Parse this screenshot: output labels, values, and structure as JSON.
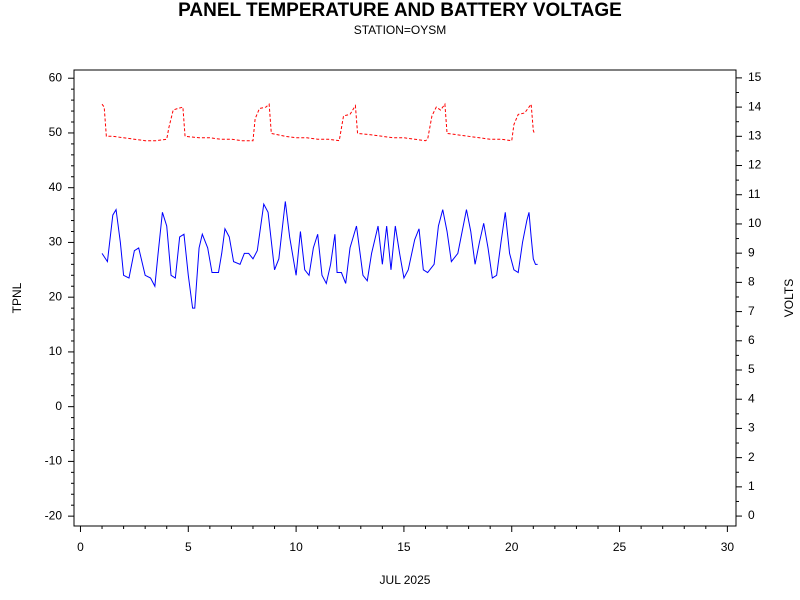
{
  "chart_data": {
    "type": "line",
    "title": "PANEL TEMPERATURE AND BATTERY VOLTAGE",
    "subtitle": "STATION=OYSM",
    "xlabel": "JUL 2025",
    "ylabel": "TPNL",
    "y2label": "VOLTS",
    "xlim": [
      -0.3,
      30.4
    ],
    "xticks": [
      0,
      5,
      10,
      15,
      20,
      25,
      30
    ],
    "ylim": [
      -21.8,
      61.5
    ],
    "yticks": [
      -20,
      -10,
      0,
      10,
      20,
      30,
      40,
      50,
      60
    ],
    "y2lim": [
      -0.34,
      15.27
    ],
    "y2ticks": [
      0,
      1,
      2,
      3,
      4,
      5,
      6,
      7,
      8,
      9,
      10,
      11,
      12,
      13,
      14,
      15
    ],
    "series": [
      {
        "name": "TPNL",
        "color": "#0000ff",
        "dash": false,
        "x": [
          1.0,
          1.25,
          1.5,
          1.65,
          1.85,
          2.0,
          2.25,
          2.5,
          2.7,
          3.0,
          3.25,
          3.45,
          3.6,
          3.8,
          4.0,
          4.2,
          4.4,
          4.6,
          4.8,
          5.0,
          5.2,
          5.3,
          5.5,
          5.65,
          5.9,
          6.1,
          6.4,
          6.55,
          6.7,
          6.9,
          7.1,
          7.4,
          7.6,
          7.8,
          8.0,
          8.2,
          8.5,
          8.7,
          9.0,
          9.2,
          9.5,
          9.7,
          10.0,
          10.2,
          10.4,
          10.6,
          10.8,
          11.0,
          11.2,
          11.4,
          11.6,
          11.8,
          11.9,
          12.1,
          12.3,
          12.5,
          12.8,
          13.0,
          13.1,
          13.3,
          13.5,
          13.8,
          14.0,
          14.2,
          14.4,
          14.6,
          14.8,
          15.0,
          15.2,
          15.5,
          15.7,
          15.9,
          16.1,
          16.4,
          16.6,
          16.8,
          17.0,
          17.2,
          17.5,
          17.7,
          17.9,
          18.1,
          18.3,
          18.5,
          18.7,
          18.9,
          19.1,
          19.3,
          19.5,
          19.7,
          19.9,
          20.1,
          20.3,
          20.5,
          20.7,
          20.8,
          20.9,
          21.0,
          21.1,
          21.2
        ],
        "values": [
          28,
          26.5,
          35,
          36,
          30,
          24,
          23.5,
          28.5,
          29,
          24,
          23.5,
          22,
          28,
          35.5,
          33,
          24,
          23.5,
          31,
          31.5,
          24,
          18,
          18,
          29,
          31.5,
          29,
          24.5,
          24.5,
          28,
          32.5,
          31,
          26.5,
          26,
          28,
          28,
          27,
          28.5,
          37,
          35.5,
          25,
          27,
          37.5,
          31,
          24,
          32,
          25,
          24,
          29,
          31.5,
          24,
          22.5,
          26,
          31.5,
          24.5,
          24.5,
          22.5,
          29,
          33,
          27,
          24,
          23,
          28,
          33,
          26,
          33,
          25,
          33,
          28,
          23.5,
          25,
          30.5,
          32.5,
          25,
          24.5,
          26,
          33,
          36,
          32,
          26.5,
          28,
          32,
          36,
          32,
          26,
          30,
          33.5,
          29,
          23.5,
          24,
          30,
          35.5,
          28,
          25,
          24.5,
          30,
          34,
          35.5,
          31,
          27,
          26,
          26
        ]
      },
      {
        "name": "VOLTS",
        "color": "#ff0000",
        "dash": true,
        "axis": "y2",
        "x": [
          1.0,
          1.1,
          1.2,
          1.5,
          2.0,
          2.5,
          3.0,
          3.5,
          4.0,
          4.1,
          4.3,
          4.5,
          4.75,
          4.85,
          5.5,
          6.0,
          6.5,
          7.0,
          7.5,
          8.0,
          8.1,
          8.3,
          8.6,
          8.75,
          8.85,
          9.5,
          10.0,
          10.5,
          11.0,
          11.5,
          12.0,
          12.2,
          12.5,
          12.75,
          12.85,
          13.5,
          14.0,
          14.5,
          15.0,
          15.5,
          16.0,
          16.1,
          16.3,
          16.5,
          16.7,
          16.9,
          17.0,
          17.5,
          18.0,
          18.5,
          19.0,
          19.5,
          20.0,
          20.1,
          20.3,
          20.6,
          20.9,
          21.0,
          21.05
        ],
        "values": [
          14.1,
          14.0,
          13.0,
          13.0,
          12.95,
          12.9,
          12.85,
          12.85,
          12.9,
          13.3,
          13.9,
          13.95,
          14.0,
          13.0,
          12.95,
          12.95,
          12.9,
          12.9,
          12.85,
          12.85,
          13.6,
          13.95,
          14.0,
          14.1,
          13.1,
          13.0,
          12.95,
          12.95,
          12.9,
          12.9,
          12.85,
          13.7,
          13.75,
          14.05,
          13.1,
          13.05,
          13.0,
          12.95,
          12.95,
          12.9,
          12.85,
          12.9,
          13.7,
          14.0,
          13.9,
          14.1,
          13.1,
          13.05,
          13.0,
          12.95,
          12.9,
          12.9,
          12.85,
          13.4,
          13.75,
          13.8,
          14.1,
          13.2,
          13.1
        ]
      }
    ]
  }
}
